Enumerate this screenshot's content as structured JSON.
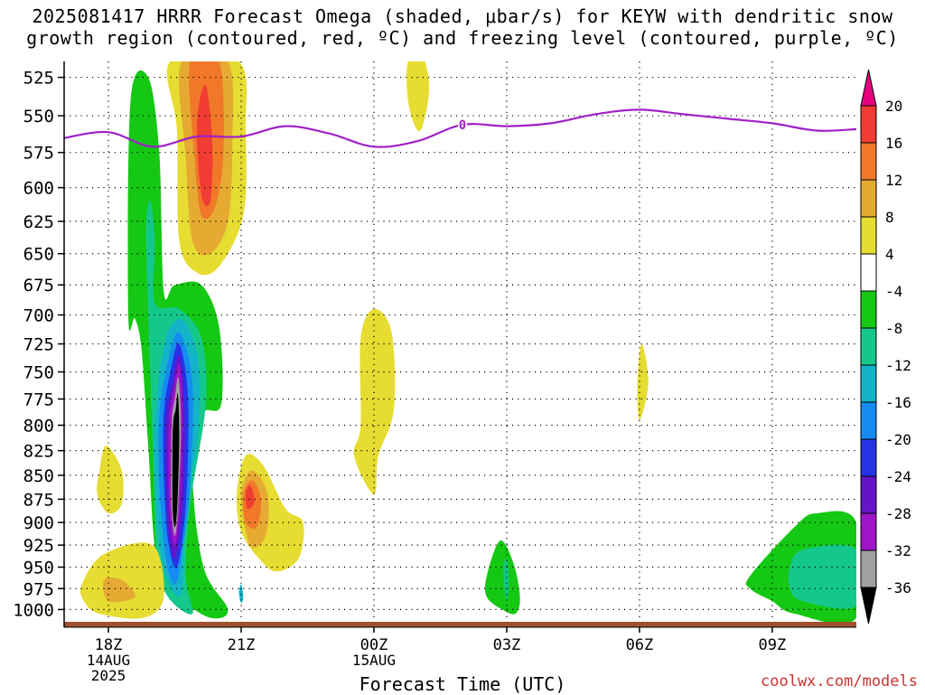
{
  "title": {
    "line1": "2025081417 HRRR Forecast Omega (shaded, μbar/s) for KEYW with dendritic snow",
    "line2": "growth region (contoured, red, ºC) and freezing level (contoured, purple, ºC)"
  },
  "watermark": "coolwx.com/models",
  "colors": {
    "freezing_level": "#a020c8",
    "ground": "#a0522d",
    "grid": "#000000"
  },
  "chart_data": {
    "type": "heatmap",
    "title": "2025081417 HRRR Forecast Omega (shaded, μbar/s) for KEYW with dendritic snow growth region (contoured, red, ºC) and freezing level (contoured, purple, ºC)",
    "xlabel": "Forecast Time (UTC)",
    "ylabel": "",
    "x_ticks": [
      {
        "hour": 1,
        "label": "18Z",
        "sub": [
          "14AUG",
          "2025"
        ]
      },
      {
        "hour": 4,
        "label": "21Z",
        "sub": []
      },
      {
        "hour": 7,
        "label": "00Z",
        "sub": [
          "15AUG"
        ]
      },
      {
        "hour": 10,
        "label": "03Z",
        "sub": []
      },
      {
        "hour": 13,
        "label": "06Z",
        "sub": []
      },
      {
        "hour": 16,
        "label": "09Z",
        "sub": []
      }
    ],
    "xlim_hours": [
      0,
      17.9
    ],
    "y_ticks": [
      525,
      550,
      575,
      600,
      625,
      650,
      675,
      700,
      725,
      750,
      775,
      800,
      825,
      850,
      875,
      900,
      925,
      950,
      975,
      1000
    ],
    "ylim_hpa": [
      515,
      1015
    ],
    "y_scale": "log-pressure",
    "grid": true,
    "colorbar": {
      "units": "μbar/s",
      "bins": [
        {
          "from": 20,
          "to": null,
          "color": "#e6007e"
        },
        {
          "from": 16,
          "to": 20,
          "color": "#f03c32"
        },
        {
          "from": 12,
          "to": 16,
          "color": "#f07828"
        },
        {
          "from": 8,
          "to": 12,
          "color": "#e6aa32"
        },
        {
          "from": 4,
          "to": 8,
          "color": "#e6dc32"
        },
        {
          "from": -4,
          "to": 4,
          "color": "#ffffff"
        },
        {
          "from": -8,
          "to": -4,
          "color": "#14c814"
        },
        {
          "from": -12,
          "to": -8,
          "color": "#14c88c"
        },
        {
          "from": -16,
          "to": -12,
          "color": "#14b4c8"
        },
        {
          "from": -20,
          "to": -16,
          "color": "#148cf0"
        },
        {
          "from": -24,
          "to": -20,
          "color": "#2832e6"
        },
        {
          "from": -28,
          "to": -24,
          "color": "#6414c8"
        },
        {
          "from": -32,
          "to": -28,
          "color": "#a014c8"
        },
        {
          "from": -36,
          "to": -32,
          "color": "#a0a0a0"
        },
        {
          "from": null,
          "to": -36,
          "color": "#000000"
        }
      ],
      "labels": [
        "20",
        "16",
        "12",
        "8",
        "4",
        "-4",
        "-8",
        "-12",
        "-16",
        "-20",
        "-24",
        "-28",
        "-32",
        "-36"
      ]
    },
    "freezing_level_contour": {
      "label": "0",
      "label_hour": 9.0,
      "points": [
        {
          "hour": 0,
          "hpa": 565
        },
        {
          "hour": 1,
          "hpa": 561
        },
        {
          "hour": 2,
          "hpa": 571
        },
        {
          "hour": 3,
          "hpa": 564
        },
        {
          "hour": 4,
          "hpa": 564
        },
        {
          "hour": 5,
          "hpa": 557
        },
        {
          "hour": 6,
          "hpa": 562
        },
        {
          "hour": 7,
          "hpa": 571
        },
        {
          "hour": 8,
          "hpa": 567
        },
        {
          "hour": 9,
          "hpa": 556
        },
        {
          "hour": 10,
          "hpa": 557
        },
        {
          "hour": 11,
          "hpa": 555
        },
        {
          "hour": 12,
          "hpa": 549
        },
        {
          "hour": 13,
          "hpa": 546
        },
        {
          "hour": 14,
          "hpa": 549
        },
        {
          "hour": 15,
          "hpa": 552
        },
        {
          "hour": 16,
          "hpa": 555
        },
        {
          "hour": 17,
          "hpa": 560
        },
        {
          "hour": 17.9,
          "hpa": 559
        }
      ]
    },
    "omega_regions": [
      {
        "name": "upward-column-outer",
        "value": -4,
        "points": [
          [
            1.45,
            700
          ],
          [
            1.5,
            540
          ],
          [
            1.9,
            525
          ],
          [
            2.15,
            575
          ],
          [
            2.25,
            680
          ],
          [
            2.5,
            675
          ],
          [
            3.1,
            675
          ],
          [
            3.5,
            710
          ],
          [
            3.55,
            780
          ],
          [
            3.1,
            790
          ],
          [
            2.9,
            850
          ],
          [
            3.15,
            950
          ],
          [
            3.7,
            1000
          ],
          [
            3.3,
            1010
          ],
          [
            2.6,
            985
          ],
          [
            2.1,
            945
          ],
          [
            1.9,
            820
          ],
          [
            1.75,
            730
          ],
          [
            1.6,
            703
          ]
        ]
      },
      {
        "name": "upward-column-teal",
        "value": -8,
        "points": [
          [
            1.85,
            630
          ],
          [
            1.95,
            610
          ],
          [
            2.05,
            640
          ],
          [
            2.05,
            690
          ],
          [
            2.6,
            695
          ],
          [
            3.1,
            720
          ],
          [
            3.2,
            780
          ],
          [
            2.85,
            880
          ],
          [
            2.75,
            960
          ],
          [
            2.9,
            1005
          ],
          [
            2.35,
            985
          ],
          [
            2.1,
            940
          ],
          [
            2.0,
            820
          ],
          [
            1.9,
            700
          ]
        ]
      },
      {
        "name": "upward-column-cyan",
        "value": -12,
        "points": [
          [
            2.3,
            720
          ],
          [
            2.7,
            705
          ],
          [
            3.05,
            745
          ],
          [
            3.0,
            820
          ],
          [
            2.7,
            890
          ],
          [
            2.7,
            960
          ],
          [
            2.6,
            985
          ],
          [
            2.3,
            960
          ],
          [
            2.1,
            900
          ],
          [
            2.05,
            800
          ]
        ]
      },
      {
        "name": "upward-column-blue",
        "value": -16,
        "points": [
          [
            2.35,
            740
          ],
          [
            2.6,
            715
          ],
          [
            2.9,
            760
          ],
          [
            2.85,
            860
          ],
          [
            2.65,
            940
          ],
          [
            2.5,
            970
          ],
          [
            2.3,
            940
          ],
          [
            2.15,
            860
          ],
          [
            2.15,
            790
          ]
        ]
      },
      {
        "name": "upward-column-darkblue",
        "value": -20,
        "points": [
          [
            2.4,
            750
          ],
          [
            2.6,
            725
          ],
          [
            2.8,
            775
          ],
          [
            2.75,
            880
          ],
          [
            2.55,
            950
          ],
          [
            2.35,
            920
          ],
          [
            2.25,
            850
          ],
          [
            2.25,
            790
          ]
        ]
      },
      {
        "name": "upward-column-indigo",
        "value": -24,
        "points": [
          [
            2.45,
            760
          ],
          [
            2.6,
            735
          ],
          [
            2.72,
            785
          ],
          [
            2.68,
            880
          ],
          [
            2.5,
            940
          ],
          [
            2.35,
            905
          ],
          [
            2.3,
            840
          ],
          [
            2.32,
            790
          ]
        ]
      },
      {
        "name": "upward-column-purple",
        "value": -28,
        "points": [
          [
            2.48,
            765
          ],
          [
            2.6,
            743
          ],
          [
            2.68,
            790
          ],
          [
            2.62,
            880
          ],
          [
            2.5,
            925
          ],
          [
            2.38,
            890
          ],
          [
            2.36,
            830
          ],
          [
            2.38,
            790
          ]
        ]
      },
      {
        "name": "upward-column-gray",
        "value": -32,
        "points": [
          [
            2.5,
            775
          ],
          [
            2.58,
            755
          ],
          [
            2.64,
            800
          ],
          [
            2.58,
            880
          ],
          [
            2.5,
            915
          ],
          [
            2.42,
            880
          ],
          [
            2.42,
            820
          ],
          [
            2.44,
            790
          ]
        ]
      },
      {
        "name": "upward-column-core",
        "value": -36,
        "points": [
          [
            2.52,
            785
          ],
          [
            2.57,
            770
          ],
          [
            2.6,
            810
          ],
          [
            2.56,
            880
          ],
          [
            2.5,
            905
          ],
          [
            2.45,
            880
          ],
          [
            2.45,
            820
          ],
          [
            2.47,
            795
          ]
        ]
      },
      {
        "name": "upward-column-base-cyan",
        "value": -12,
        "points": [
          [
            3.95,
            980
          ],
          [
            4.0,
            970
          ],
          [
            4.05,
            985
          ],
          [
            4.0,
            992
          ]
        ]
      },
      {
        "name": "upward-low-03z",
        "value": -4,
        "points": [
          [
            9.55,
            960
          ],
          [
            9.85,
            920
          ],
          [
            10.15,
            945
          ],
          [
            10.3,
            985
          ],
          [
            10.2,
            1005
          ],
          [
            9.9,
            1000
          ],
          [
            9.55,
            985
          ]
        ]
      },
      {
        "name": "upward-low-03z-teal",
        "value": -8,
        "points": [
          [
            9.93,
            950
          ],
          [
            10.0,
            940
          ],
          [
            10.05,
            965
          ],
          [
            10.0,
            990
          ],
          [
            9.95,
            975
          ]
        ]
      },
      {
        "name": "upward-low-late",
        "value": -4,
        "points": [
          [
            15.5,
            960
          ],
          [
            16.5,
            905
          ],
          [
            17.0,
            890
          ],
          [
            17.9,
            900
          ],
          [
            17.9,
            1010
          ],
          [
            16.5,
            1005
          ],
          [
            16.0,
            990
          ],
          [
            15.5,
            975
          ]
        ]
      },
      {
        "name": "upward-low-late-teal",
        "value": -8,
        "points": [
          [
            16.4,
            950
          ],
          [
            16.7,
            930
          ],
          [
            17.9,
            930
          ],
          [
            17.9,
            995
          ],
          [
            16.7,
            990
          ],
          [
            16.4,
            975
          ]
        ]
      },
      {
        "name": "sink-upper",
        "value": 4,
        "points": [
          [
            2.4,
            515
          ],
          [
            3.95,
            515
          ],
          [
            4.1,
            560
          ],
          [
            4.05,
            620
          ],
          [
            3.5,
            660
          ],
          [
            3.0,
            665
          ],
          [
            2.6,
            640
          ],
          [
            2.55,
            560
          ]
        ]
      },
      {
        "name": "sink-upper-gold",
        "value": 8,
        "points": [
          [
            2.65,
            515
          ],
          [
            3.7,
            515
          ],
          [
            3.8,
            570
          ],
          [
            3.7,
            625
          ],
          [
            3.3,
            650
          ],
          [
            2.9,
            640
          ],
          [
            2.75,
            580
          ]
        ]
      },
      {
        "name": "sink-upper-orange",
        "value": 12,
        "points": [
          [
            2.85,
            515
          ],
          [
            3.5,
            515
          ],
          [
            3.6,
            575
          ],
          [
            3.4,
            615
          ],
          [
            3.1,
            620
          ],
          [
            2.95,
            580
          ]
        ]
      },
      {
        "name": "sink-upper-red",
        "value": 16,
        "points": [
          [
            3.0,
            555
          ],
          [
            3.2,
            530
          ],
          [
            3.35,
            570
          ],
          [
            3.3,
            610
          ],
          [
            3.1,
            605
          ]
        ]
      },
      {
        "name": "sink-top-00z",
        "value": 4,
        "points": [
          [
            7.75,
            518
          ],
          [
            8.0,
            505
          ],
          [
            8.25,
            530
          ],
          [
            8.05,
            560
          ],
          [
            7.8,
            545
          ]
        ]
      },
      {
        "name": "sink-mid-00z",
        "value": 4,
        "points": [
          [
            6.7,
            800
          ],
          [
            6.7,
            720
          ],
          [
            7.0,
            695
          ],
          [
            7.4,
            715
          ],
          [
            7.45,
            785
          ],
          [
            7.1,
            830
          ],
          [
            7.0,
            870
          ],
          [
            6.55,
            830
          ]
        ]
      },
      {
        "name": "sink-06z",
        "value": 4,
        "points": [
          [
            12.95,
            760
          ],
          [
            13.05,
            725
          ],
          [
            13.2,
            760
          ],
          [
            13.0,
            795
          ]
        ]
      },
      {
        "name": "sink-lower",
        "value": 4,
        "points": [
          [
            3.9,
            870
          ],
          [
            4.1,
            830
          ],
          [
            4.5,
            840
          ],
          [
            5.0,
            885
          ],
          [
            5.4,
            900
          ],
          [
            5.3,
            940
          ],
          [
            4.8,
            955
          ],
          [
            4.4,
            940
          ],
          [
            4.0,
            910
          ]
        ]
      },
      {
        "name": "sink-lower-gold",
        "value": 8,
        "points": [
          [
            4.0,
            870
          ],
          [
            4.25,
            845
          ],
          [
            4.6,
            870
          ],
          [
            4.55,
            915
          ],
          [
            4.2,
            925
          ]
        ]
      },
      {
        "name": "sink-lower-orange",
        "value": 12,
        "points": [
          [
            4.05,
            870
          ],
          [
            4.25,
            855
          ],
          [
            4.45,
            875
          ],
          [
            4.35,
            905
          ],
          [
            4.1,
            900
          ]
        ]
      },
      {
        "name": "sink-lower-red",
        "value": 16,
        "points": [
          [
            4.1,
            870
          ],
          [
            4.2,
            860
          ],
          [
            4.3,
            877
          ],
          [
            4.15,
            885
          ]
        ]
      },
      {
        "name": "sink-18z-mid",
        "value": 4,
        "points": [
          [
            0.8,
            845
          ],
          [
            0.95,
            820
          ],
          [
            1.3,
            845
          ],
          [
            1.3,
            880
          ],
          [
            1.0,
            890
          ],
          [
            0.75,
            870
          ]
        ]
      },
      {
        "name": "sink-18z-low",
        "value": 4,
        "points": [
          [
            0.4,
            970
          ],
          [
            0.9,
            935
          ],
          [
            2.0,
            925
          ],
          [
            2.25,
            985
          ],
          [
            1.8,
            1010
          ],
          [
            0.8,
            1005
          ],
          [
            0.45,
            990
          ]
        ]
      },
      {
        "name": "sink-18z-low-gold",
        "value": 8,
        "points": [
          [
            0.9,
            965
          ],
          [
            1.3,
            965
          ],
          [
            1.6,
            985
          ],
          [
            1.0,
            990
          ]
        ]
      }
    ]
  }
}
